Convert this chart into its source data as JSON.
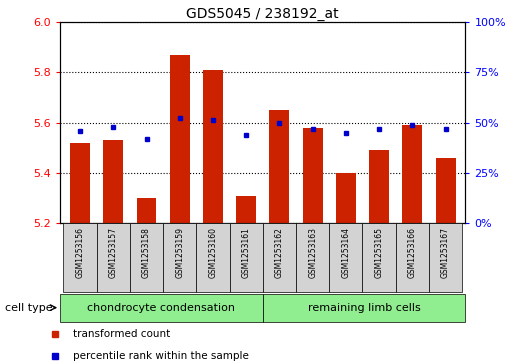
{
  "title": "GDS5045 / 238192_at",
  "samples": [
    "GSM1253156",
    "GSM1253157",
    "GSM1253158",
    "GSM1253159",
    "GSM1253160",
    "GSM1253161",
    "GSM1253162",
    "GSM1253163",
    "GSM1253164",
    "GSM1253165",
    "GSM1253166",
    "GSM1253167"
  ],
  "transformed_count": [
    5.52,
    5.53,
    5.3,
    5.87,
    5.81,
    5.31,
    5.65,
    5.58,
    5.4,
    5.49,
    5.59,
    5.46
  ],
  "percentile_rank_pct": [
    46,
    48,
    42,
    52,
    51,
    44,
    50,
    47,
    45,
    47,
    49,
    47
  ],
  "ylim": [
    5.2,
    6.0
  ],
  "yticks_left": [
    5.2,
    5.4,
    5.6,
    5.8,
    6.0
  ],
  "yticks_right": [
    0,
    25,
    50,
    75,
    100
  ],
  "bar_color": "#cc2200",
  "dot_color": "#0000cc",
  "cell_type_label": "cell type",
  "group1_label": "chondrocyte condensation",
  "group2_label": "remaining limb cells",
  "legend_bar_label": "transformed count",
  "legend_dot_label": "percentile rank within the sample",
  "group_bg": "#90ee90",
  "sample_bg": "#d3d3d3"
}
